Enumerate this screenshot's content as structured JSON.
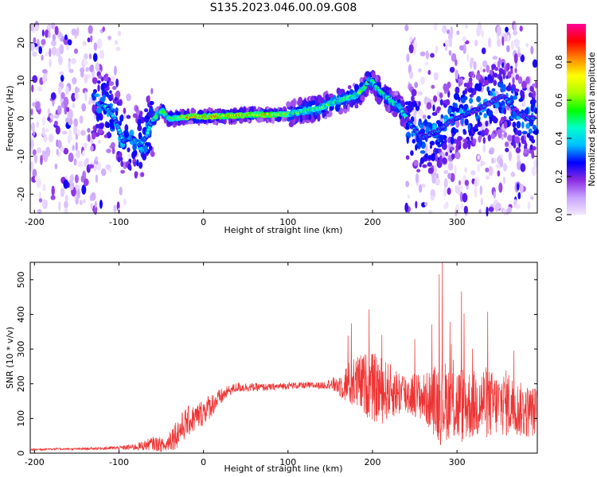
{
  "title": "S135.2023.046.00.09.G08",
  "chart_data": [
    {
      "type": "heatmap",
      "xlabel": "Height of straight line (km)",
      "ylabel": "Frequency (Hz)",
      "xlim": [
        -205,
        395
      ],
      "ylim": [
        -25,
        25
      ],
      "x_ticks": [
        -200,
        -100,
        0,
        100,
        200,
        300
      ],
      "y_ticks": [
        -20,
        -10,
        0,
        10,
        20
      ],
      "ridge": {
        "x": [
          -125,
          -115,
          -105,
          -95,
          -85,
          -75,
          -68,
          -62,
          -55,
          -48,
          -42,
          -35,
          -25,
          -10,
          0,
          20,
          40,
          60,
          80,
          100,
          110,
          120,
          130,
          140,
          150,
          160,
          170,
          180,
          190,
          195,
          200,
          205,
          215,
          225,
          232,
          240,
          250,
          260,
          270,
          280,
          290,
          300,
          310,
          320,
          330,
          345,
          355,
          365,
          375,
          385,
          392
        ],
        "y": [
          4,
          3,
          0,
          -6,
          -5,
          -7,
          -5,
          -1,
          1,
          2,
          0,
          0,
          0.3,
          0.5,
          0.5,
          0.6,
          0.8,
          1,
          1,
          1.2,
          1.5,
          2,
          2.5,
          3,
          4,
          4.5,
          5.5,
          6,
          8,
          10,
          10,
          8,
          6,
          4,
          3,
          0,
          -3,
          -5,
          -4,
          -3,
          -1,
          0,
          1,
          2,
          3,
          5,
          6,
          3,
          1,
          0,
          0
        ]
      },
      "colorbar": {
        "label": "Normalized spectral amplitude",
        "range": [
          0,
          1
        ],
        "ticks": [
          0.0,
          0.2,
          0.4,
          0.6,
          0.8
        ],
        "colors": [
          "#f2e6ff",
          "#c8a2ff",
          "#8a2be2",
          "#0000ff",
          "#00bfff",
          "#00ffcc",
          "#00ff00",
          "#aaff00",
          "#ffff00",
          "#ff8800",
          "#ff0000",
          "#ff0099"
        ]
      }
    },
    {
      "type": "line",
      "xlabel": "Height of straight line (km)",
      "ylabel": "SNR (10 * v/v)",
      "xlim": [
        -205,
        395
      ],
      "ylim": [
        0,
        550
      ],
      "x_ticks": [
        -200,
        -100,
        0,
        100,
        200,
        300
      ],
      "y_ticks": [
        0,
        100,
        200,
        300,
        400,
        500
      ],
      "series": [
        {
          "color": "#ee3333",
          "x": [
            -205,
            -180,
            -150,
            -120,
            -100,
            -80,
            -70,
            -60,
            -50,
            -45,
            -40,
            -30,
            -20,
            -10,
            0,
            10,
            20,
            30,
            40,
            60,
            80,
            100,
            120,
            140,
            150,
            160,
            170,
            180,
            190,
            200,
            210,
            220,
            230,
            240,
            250,
            260,
            270,
            280,
            290,
            300,
            310,
            320,
            330,
            340,
            350,
            360,
            370,
            380,
            395
          ],
          "y": [
            10,
            12,
            12,
            14,
            15,
            18,
            22,
            28,
            25,
            18,
            40,
            60,
            90,
            100,
            120,
            140,
            160,
            180,
            190,
            190,
            190,
            195,
            195,
            195,
            200,
            195,
            200,
            200,
            200,
            190,
            180,
            180,
            175,
            170,
            170,
            160,
            150,
            150,
            150,
            140,
            140,
            140,
            150,
            140,
            140,
            145,
            130,
            120,
            120
          ],
          "noise": [
            3,
            3,
            3,
            4,
            6,
            10,
            15,
            20,
            22,
            15,
            35,
            45,
            45,
            40,
            40,
            35,
            25,
            15,
            15,
            12,
            10,
            10,
            10,
            10,
            15,
            30,
            60,
            80,
            90,
            100,
            100,
            80,
            70,
            65,
            65,
            70,
            90,
            130,
            110,
            120,
            110,
            100,
            110,
            100,
            90,
            100,
            80,
            80,
            70
          ]
        }
      ]
    }
  ]
}
